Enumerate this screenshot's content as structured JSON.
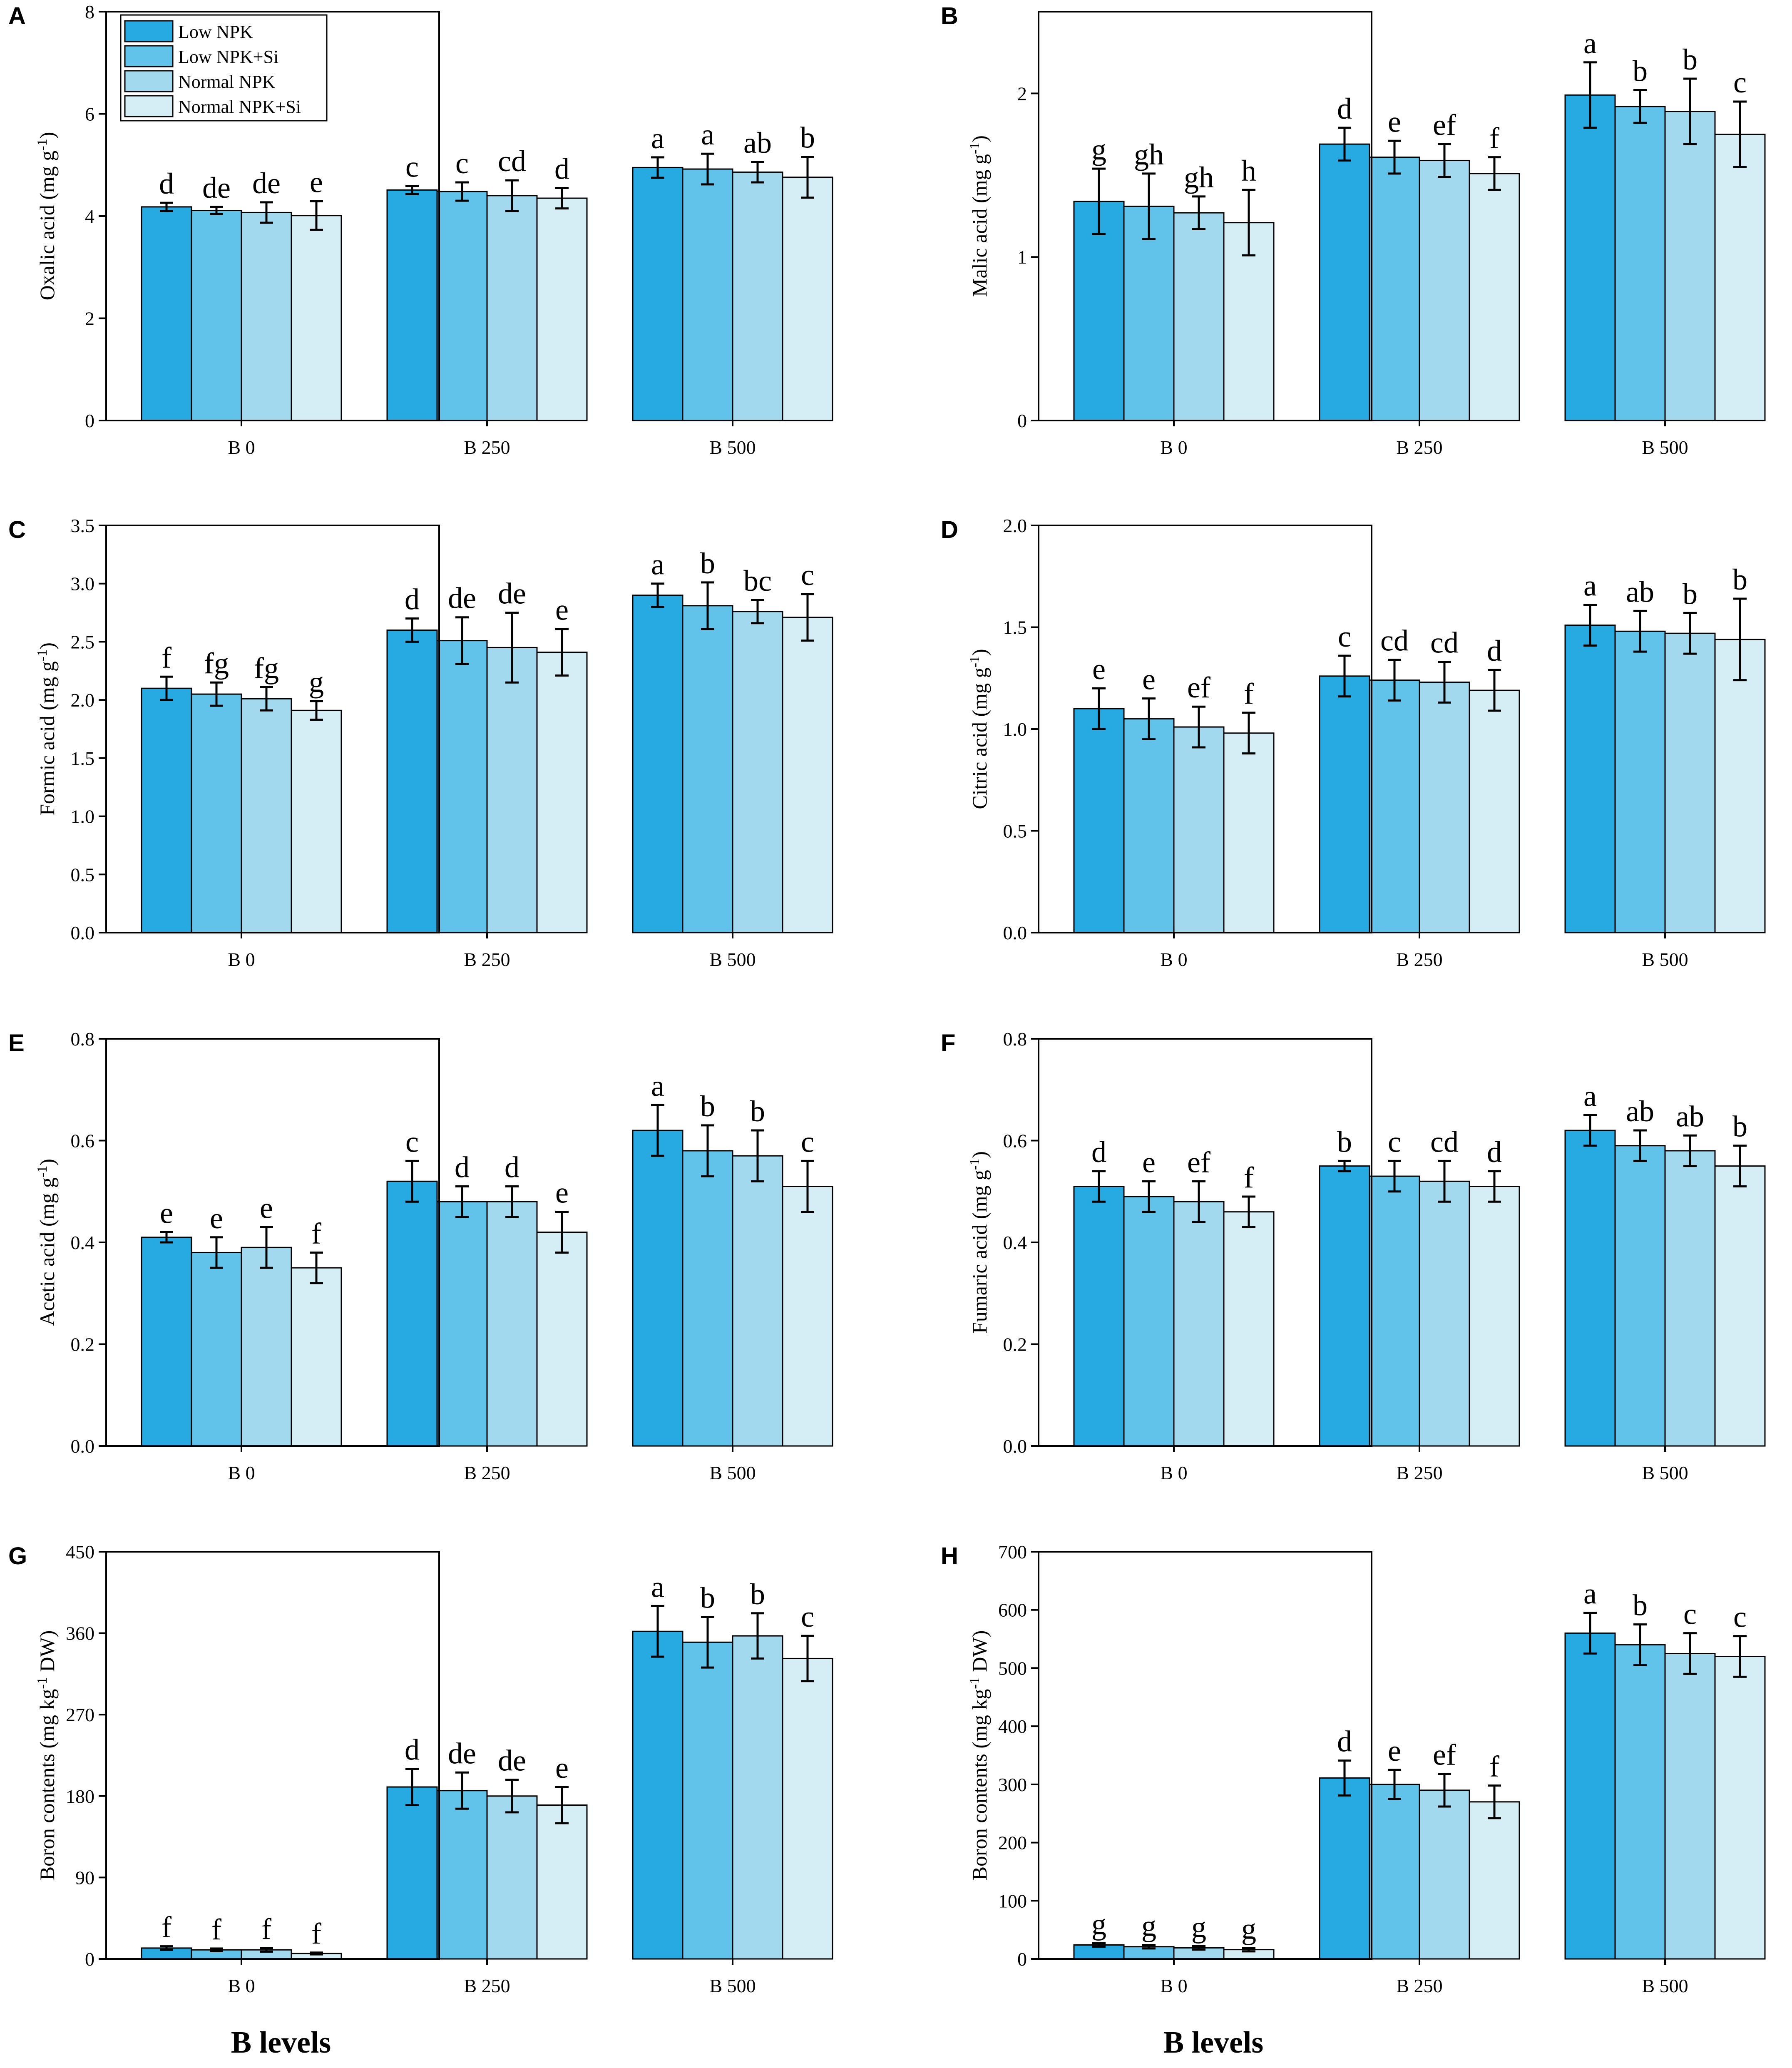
{
  "figure": {
    "x_axis_title": "B levels",
    "legend": [
      "Low NPK",
      "Low NPK+Si",
      "Normal NPK",
      "Normal NPK+Si"
    ],
    "colors": [
      "#27aae1",
      "#62c3ea",
      "#a3d9ef",
      "#d5eef6"
    ]
  },
  "chart_data": [
    {
      "type": "bar",
      "panel": "A",
      "title": "",
      "ylabel": "Oxalic acid (mg g-1)",
      "ylabel_main": "Oxalic acid (mg g",
      "ylabel_sup": "-1",
      "ylabel_end": ")",
      "xlabel": "",
      "categories": [
        "B 0",
        "B 250",
        "B 500"
      ],
      "ylim": [
        0,
        8
      ],
      "yticks": [
        "0",
        "2",
        "4",
        "6",
        "8"
      ],
      "show_legend": true,
      "series": [
        {
          "name": "Low NPK",
          "values": [
            4.18,
            4.51,
            4.95
          ],
          "errors": [
            0.08,
            0.08,
            0.2
          ],
          "letters": [
            "d",
            "c",
            "a"
          ]
        },
        {
          "name": "Low NPK+Si",
          "values": [
            4.11,
            4.48,
            4.92
          ],
          "errors": [
            0.07,
            0.18,
            0.3
          ],
          "letters": [
            "de",
            "c",
            "a"
          ]
        },
        {
          "name": "Normal NPK",
          "values": [
            4.07,
            4.4,
            4.86
          ],
          "errors": [
            0.2,
            0.3,
            0.2
          ],
          "letters": [
            "de",
            "cd",
            "ab"
          ]
        },
        {
          "name": "Normal NPK+Si",
          "values": [
            4.01,
            4.35,
            4.76
          ],
          "errors": [
            0.28,
            0.2,
            0.4
          ],
          "letters": [
            "e",
            "d",
            "b"
          ]
        }
      ]
    },
    {
      "type": "bar",
      "panel": "B",
      "title": "",
      "ylabel": "Malic acid (mg g-1)",
      "ylabel_main": "Malic acid (mg g",
      "ylabel_sup": "-1",
      "ylabel_end": ")",
      "xlabel": "",
      "categories": [
        "B 0",
        "B 250",
        "B 500"
      ],
      "ylim": [
        0,
        2.5
      ],
      "yticks": [
        "0",
        "1",
        "2"
      ],
      "show_legend": false,
      "series": [
        {
          "name": "Low NPK",
          "values": [
            1.34,
            1.69,
            1.99
          ],
          "errors": [
            0.2,
            0.1,
            0.2
          ],
          "letters": [
            "g",
            "d",
            "a"
          ]
        },
        {
          "name": "Low NPK+Si",
          "values": [
            1.31,
            1.61,
            1.92
          ],
          "errors": [
            0.2,
            0.1,
            0.1
          ],
          "letters": [
            "gh",
            "e",
            "b"
          ]
        },
        {
          "name": "Normal NPK",
          "values": [
            1.27,
            1.59,
            1.89
          ],
          "errors": [
            0.1,
            0.1,
            0.2
          ],
          "letters": [
            "gh",
            "ef",
            "b"
          ]
        },
        {
          "name": "Normal NPK+Si",
          "values": [
            1.21,
            1.51,
            1.75
          ],
          "errors": [
            0.2,
            0.1,
            0.2
          ],
          "letters": [
            "h",
            "f",
            "c"
          ]
        }
      ]
    },
    {
      "type": "bar",
      "panel": "C",
      "title": "",
      "ylabel": "Formic acid (mg g-1)",
      "ylabel_main": "Formic acid (mg g",
      "ylabel_sup": "-1",
      "ylabel_end": ")",
      "xlabel": "",
      "categories": [
        "B 0",
        "B 250",
        "B 500"
      ],
      "ylim": [
        0,
        3.5
      ],
      "yticks": [
        "0.0",
        "0.5",
        "1.0",
        "1.5",
        "2.0",
        "2.5",
        "3.0",
        "3.5"
      ],
      "show_legend": false,
      "series": [
        {
          "name": "Low NPK",
          "values": [
            2.1,
            2.6,
            2.9
          ],
          "errors": [
            0.1,
            0.1,
            0.1
          ],
          "letters": [
            "f",
            "d",
            "a"
          ]
        },
        {
          "name": "Low NPK+Si",
          "values": [
            2.05,
            2.51,
            2.81
          ],
          "errors": [
            0.1,
            0.2,
            0.2
          ],
          "letters": [
            "fg",
            "de",
            "b"
          ]
        },
        {
          "name": "Normal NPK",
          "values": [
            2.01,
            2.45,
            2.76
          ],
          "errors": [
            0.1,
            0.3,
            0.1
          ],
          "letters": [
            "fg",
            "de",
            "bc"
          ]
        },
        {
          "name": "Normal NPK+Si",
          "values": [
            1.91,
            2.41,
            2.71
          ],
          "errors": [
            0.08,
            0.2,
            0.2
          ],
          "letters": [
            "g",
            "e",
            "c"
          ]
        }
      ]
    },
    {
      "type": "bar",
      "panel": "D",
      "title": "",
      "ylabel": "Citric acid (mg g-1)",
      "ylabel_main": "Citric acid (mg g",
      "ylabel_sup": "-1",
      "ylabel_end": ")",
      "xlabel": "",
      "categories": [
        "B 0",
        "B 250",
        "B 500"
      ],
      "ylim": [
        0,
        2.0
      ],
      "yticks": [
        "0.0",
        "0.5",
        "1.0",
        "1.5",
        "2.0"
      ],
      "show_legend": false,
      "series": [
        {
          "name": "Low NPK",
          "values": [
            1.1,
            1.26,
            1.51
          ],
          "errors": [
            0.1,
            0.1,
            0.1
          ],
          "letters": [
            "e",
            "c",
            "a"
          ]
        },
        {
          "name": "Low NPK+Si",
          "values": [
            1.05,
            1.24,
            1.48
          ],
          "errors": [
            0.1,
            0.1,
            0.1
          ],
          "letters": [
            "e",
            "cd",
            "ab"
          ]
        },
        {
          "name": "Normal NPK",
          "values": [
            1.01,
            1.23,
            1.47
          ],
          "errors": [
            0.1,
            0.1,
            0.1
          ],
          "letters": [
            "ef",
            "cd",
            "b"
          ]
        },
        {
          "name": "Normal NPK+Si",
          "values": [
            0.98,
            1.19,
            1.44
          ],
          "errors": [
            0.1,
            0.1,
            0.2
          ],
          "letters": [
            "f",
            "d",
            "b"
          ]
        }
      ]
    },
    {
      "type": "bar",
      "panel": "E",
      "title": "",
      "ylabel": "Acetic acid (mg g-1)",
      "ylabel_main": "Acetic acid (mg g",
      "ylabel_sup": "-1",
      "ylabel_end": ")",
      "xlabel": "",
      "categories": [
        "B 0",
        "B 250",
        "B 500"
      ],
      "ylim": [
        0,
        0.8
      ],
      "yticks": [
        "0.0",
        "0.2",
        "0.4",
        "0.6",
        "0.8"
      ],
      "show_legend": false,
      "series": [
        {
          "name": "Low NPK",
          "values": [
            0.41,
            0.52,
            0.62
          ],
          "errors": [
            0.01,
            0.04,
            0.05
          ],
          "letters": [
            "e",
            "c",
            "a"
          ]
        },
        {
          "name": "Low NPK+Si",
          "values": [
            0.38,
            0.48,
            0.58
          ],
          "errors": [
            0.03,
            0.03,
            0.05
          ],
          "letters": [
            "e",
            "d",
            "b"
          ]
        },
        {
          "name": "Normal NPK",
          "values": [
            0.39,
            0.48,
            0.57
          ],
          "errors": [
            0.04,
            0.03,
            0.05
          ],
          "letters": [
            "e",
            "d",
            "b"
          ]
        },
        {
          "name": "Normal NPK+Si",
          "values": [
            0.35,
            0.42,
            0.51
          ],
          "errors": [
            0.03,
            0.04,
            0.05
          ],
          "letters": [
            "f",
            "e",
            "c"
          ]
        }
      ]
    },
    {
      "type": "bar",
      "panel": "F",
      "title": "",
      "ylabel": "Fumaric acid (mg g-1)",
      "ylabel_main": "Fumaric acid (mg g",
      "ylabel_sup": "-1",
      "ylabel_end": ")",
      "xlabel": "",
      "categories": [
        "B 0",
        "B 250",
        "B 500"
      ],
      "ylim": [
        0,
        0.8
      ],
      "yticks": [
        "0.0",
        "0.2",
        "0.4",
        "0.6",
        "0.8"
      ],
      "show_legend": false,
      "series": [
        {
          "name": "Low NPK",
          "values": [
            0.51,
            0.55,
            0.62
          ],
          "errors": [
            0.03,
            0.01,
            0.03
          ],
          "letters": [
            "d",
            "b",
            "a"
          ]
        },
        {
          "name": "Low NPK+Si",
          "values": [
            0.49,
            0.53,
            0.59
          ],
          "errors": [
            0.03,
            0.03,
            0.03
          ],
          "letters": [
            "e",
            "c",
            "ab"
          ]
        },
        {
          "name": "Normal NPK",
          "values": [
            0.48,
            0.52,
            0.58
          ],
          "errors": [
            0.04,
            0.04,
            0.03
          ],
          "letters": [
            "ef",
            "cd",
            "ab"
          ]
        },
        {
          "name": "Normal NPK+Si",
          "values": [
            0.46,
            0.51,
            0.55
          ],
          "errors": [
            0.03,
            0.03,
            0.04
          ],
          "letters": [
            "f",
            "d",
            "b"
          ]
        }
      ]
    },
    {
      "type": "bar",
      "panel": "G",
      "title": "",
      "ylabel": "Boron contents (mg kg-1 DW)",
      "ylabel_main": "Boron contents (mg kg",
      "ylabel_sup": "-1",
      "ylabel_end": " DW)",
      "xlabel": "",
      "categories": [
        "B 0",
        "B 250",
        "B 500"
      ],
      "ylim": [
        0,
        450
      ],
      "yticks": [
        "0",
        "90",
        "180",
        "270",
        "360",
        "450"
      ],
      "show_legend": false,
      "series": [
        {
          "name": "Low NPK",
          "values": [
            12,
            190,
            362
          ],
          "errors": [
            2,
            20,
            28
          ],
          "letters": [
            "f",
            "d",
            "a"
          ]
        },
        {
          "name": "Low NPK+Si",
          "values": [
            10,
            186,
            350
          ],
          "errors": [
            1.5,
            20,
            28
          ],
          "letters": [
            "f",
            "de",
            "b"
          ]
        },
        {
          "name": "Normal NPK",
          "values": [
            10,
            180,
            357
          ],
          "errors": [
            2,
            18,
            25
          ],
          "letters": [
            "f",
            "de",
            "b"
          ]
        },
        {
          "name": "Normal NPK+Si",
          "values": [
            6,
            170,
            332
          ],
          "errors": [
            1,
            20,
            25
          ],
          "letters": [
            "f",
            "e",
            "c"
          ]
        }
      ]
    },
    {
      "type": "bar",
      "panel": "H",
      "title": "",
      "ylabel": "Boron contents (mg kg-1 DW)",
      "ylabel_main": "Boron contents (mg kg",
      "ylabel_sup": "-1",
      "ylabel_end": " DW)",
      "xlabel": "",
      "categories": [
        "B 0",
        "B 250",
        "B 500"
      ],
      "ylim": [
        0,
        700
      ],
      "yticks": [
        "0",
        "100",
        "200",
        "300",
        "400",
        "500",
        "600",
        "700"
      ],
      "show_legend": false,
      "series": [
        {
          "name": "Low NPK",
          "values": [
            24,
            311,
            560
          ],
          "errors": [
            3,
            30,
            35
          ],
          "letters": [
            "g",
            "d",
            "a"
          ]
        },
        {
          "name": "Low NPK+Si",
          "values": [
            21,
            300,
            540
          ],
          "errors": [
            3,
            25,
            35
          ],
          "letters": [
            "g",
            "e",
            "b"
          ]
        },
        {
          "name": "Normal NPK",
          "values": [
            19,
            290,
            525
          ],
          "errors": [
            3,
            28,
            35
          ],
          "letters": [
            "g",
            "ef",
            "c"
          ]
        },
        {
          "name": "Normal NPK+Si",
          "values": [
            16,
            270,
            520
          ],
          "errors": [
            3,
            28,
            35
          ],
          "letters": [
            "g",
            "f",
            "c"
          ]
        }
      ]
    }
  ]
}
